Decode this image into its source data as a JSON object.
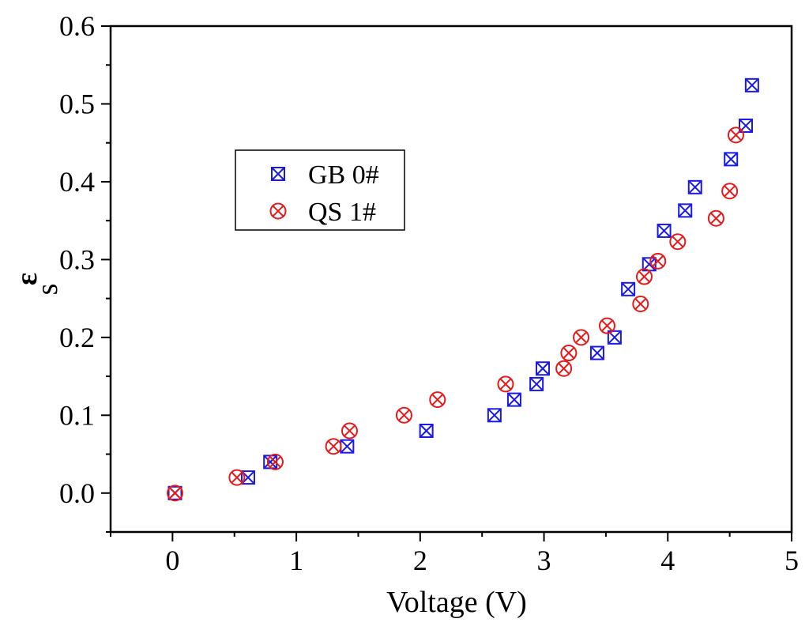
{
  "chart_data": {
    "type": "scatter",
    "title": "",
    "xlabel": "Voltage (V)",
    "ylabel_main": "ε",
    "ylabel_sub": "s",
    "xlim": [
      -0.5,
      5
    ],
    "ylim": [
      -0.05,
      0.6
    ],
    "x_ticks": [
      0,
      1,
      2,
      3,
      4,
      5
    ],
    "x_tick_labels": [
      "0",
      "1",
      "2",
      "3",
      "4",
      "5"
    ],
    "y_ticks": [
      0.0,
      0.1,
      0.2,
      0.3,
      0.4,
      0.5,
      0.6
    ],
    "y_tick_labels": [
      "0.0",
      "0.1",
      "0.2",
      "0.3",
      "0.4",
      "0.5",
      "0.6"
    ],
    "grid": false,
    "legend_position": "upper-left",
    "series": [
      {
        "name": "GB 0#",
        "marker": "square-x",
        "color": "#1a1ae6",
        "x": [
          0.02,
          0.61,
          0.79,
          1.41,
          2.05,
          2.6,
          2.76,
          2.94,
          2.99,
          3.43,
          3.57,
          3.68,
          3.85,
          3.97,
          4.14,
          4.22,
          4.51,
          4.63,
          4.68
        ],
        "y": [
          0.0,
          0.02,
          0.04,
          0.06,
          0.08,
          0.1,
          0.12,
          0.14,
          0.16,
          0.18,
          0.2,
          0.262,
          0.294,
          0.337,
          0.363,
          0.393,
          0.429,
          0.472,
          0.524
        ]
      },
      {
        "name": "QS 1#",
        "marker": "circle-x",
        "color": "#e61a1a",
        "x": [
          0.02,
          0.52,
          0.83,
          1.3,
          1.43,
          1.87,
          2.14,
          2.69,
          3.16,
          3.2,
          3.3,
          3.51,
          3.78,
          3.81,
          3.92,
          4.08,
          4.39,
          4.5,
          4.55
        ],
        "y": [
          0.0,
          0.02,
          0.04,
          0.06,
          0.08,
          0.1,
          0.12,
          0.14,
          0.16,
          0.18,
          0.2,
          0.215,
          0.243,
          0.278,
          0.298,
          0.323,
          0.353,
          0.388,
          0.46
        ]
      }
    ]
  }
}
